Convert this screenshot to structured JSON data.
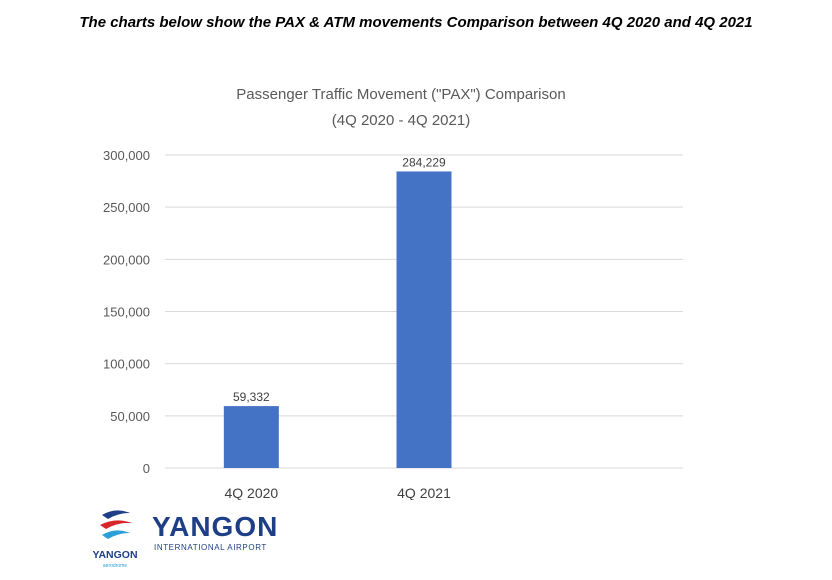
{
  "heading": "The charts below show the PAX & ATM movements Comparison between 4Q 2020 and 4Q 2021",
  "chart_data": {
    "type": "bar",
    "title": "Passenger Traffic Movement (\"PAX\") Comparison",
    "subtitle": "(4Q 2020 - 4Q 2021)",
    "categories": [
      "4Q 2020",
      "4Q 2021"
    ],
    "values": [
      59332,
      284229
    ],
    "value_labels": [
      "59,332",
      "284,229"
    ],
    "ylim": [
      0,
      300000
    ],
    "yticks": [
      0,
      50000,
      100000,
      150000,
      200000,
      250000,
      300000
    ],
    "ytick_labels": [
      "0",
      "50,000",
      "100,000",
      "150,000",
      "200,000",
      "250,000",
      "300,000"
    ],
    "xlabel": "",
    "ylabel": "",
    "grid": true,
    "bar_color": "#4472c4",
    "legend": "none"
  },
  "logo": {
    "wordmark": "YANGON",
    "subtitle": "INTERNATIONAL AIRPORT",
    "small_wordmark": "YANGON",
    "tagline": "aerodrome",
    "emblem_icon": "airport-emblem-icon",
    "colors": {
      "navy": "#1e3f87",
      "red": "#d9252a",
      "sky": "#2a9fd8"
    }
  }
}
